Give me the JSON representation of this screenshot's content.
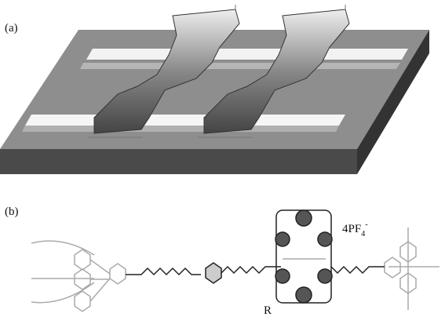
{
  "panels": [
    {
      "label": "(a)"
    },
    {
      "label": "(b)",
      "counterion": {
        "base": "4PF",
        "sub": "4",
        "sup": "-"
      },
      "group_label": "R"
    }
  ]
}
